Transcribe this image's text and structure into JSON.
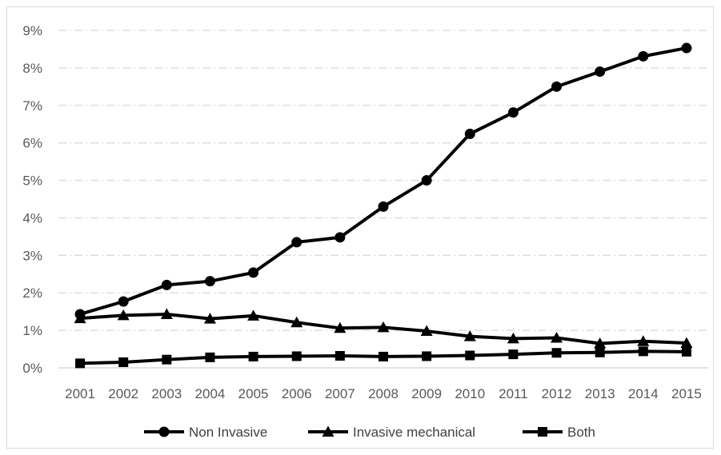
{
  "chart_data": {
    "type": "line",
    "title": "",
    "xlabel": "",
    "ylabel": "",
    "categories": [
      "2001",
      "2002",
      "2003",
      "2004",
      "2005",
      "2006",
      "2007",
      "2008",
      "2009",
      "2010",
      "2011",
      "2012",
      "2013",
      "2014",
      "2015"
    ],
    "y_ticks": [
      "0%",
      "1%",
      "2%",
      "3%",
      "4%",
      "5%",
      "6%",
      "7%",
      "8%",
      "9%"
    ],
    "ylim": [
      0,
      9
    ],
    "y_unit": "%",
    "grid": "horizontal dash-dot",
    "legend_position": "bottom",
    "series": [
      {
        "name": "Non Invasive",
        "marker": "circle",
        "values": [
          1.43,
          1.77,
          2.21,
          2.31,
          2.54,
          3.35,
          3.48,
          4.3,
          5.0,
          6.24,
          6.81,
          7.5,
          7.9,
          8.31,
          8.53
        ]
      },
      {
        "name": "Invasive mechanical",
        "marker": "triangle",
        "values": [
          1.32,
          1.4,
          1.43,
          1.31,
          1.39,
          1.21,
          1.06,
          1.08,
          0.98,
          0.84,
          0.78,
          0.8,
          0.65,
          0.71,
          0.66
        ]
      },
      {
        "name": "Both",
        "marker": "square",
        "values": [
          0.12,
          0.15,
          0.22,
          0.28,
          0.3,
          0.31,
          0.32,
          0.3,
          0.31,
          0.33,
          0.36,
          0.4,
          0.41,
          0.44,
          0.43
        ]
      }
    ],
    "colors": {
      "line": "#000000",
      "grid": "#d9d9d9",
      "text": "#595959"
    }
  }
}
